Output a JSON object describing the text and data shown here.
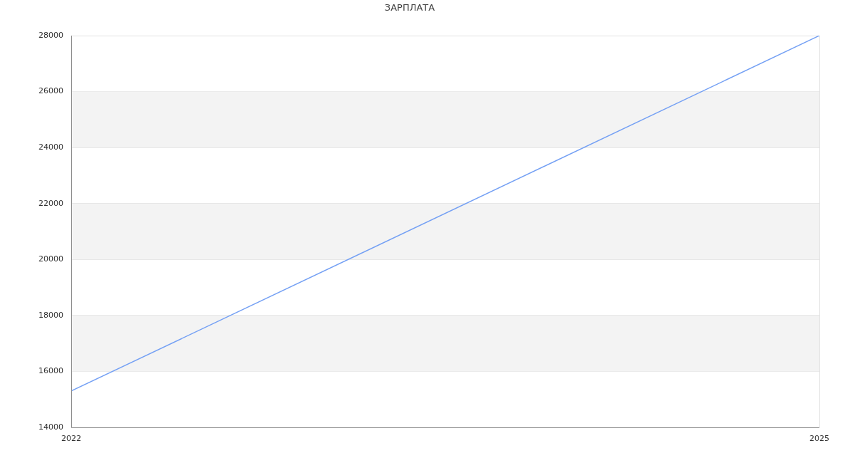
{
  "chart_data": {
    "type": "line",
    "title": "ЗАРПЛАТА",
    "x": [
      2022,
      2025
    ],
    "values": [
      15300,
      28000
    ],
    "color": "#74a0f4",
    "xlim": [
      2022,
      2025
    ],
    "xticks": [
      2022,
      2025
    ],
    "ylim": [
      14000,
      28000
    ],
    "yticks": [
      14000,
      16000,
      18000,
      20000,
      22000,
      24000,
      26000,
      28000
    ],
    "bands": [
      {
        "axis": "y",
        "from": 16000,
        "to": 18000,
        "color": "#f3f3f3"
      },
      {
        "axis": "y",
        "from": 20000,
        "to": 22000,
        "color": "#f3f3f3"
      },
      {
        "axis": "y",
        "from": 24000,
        "to": 26000,
        "color": "#f3f3f3"
      }
    ],
    "grid": true,
    "marker": "none",
    "line_style": "solid"
  }
}
